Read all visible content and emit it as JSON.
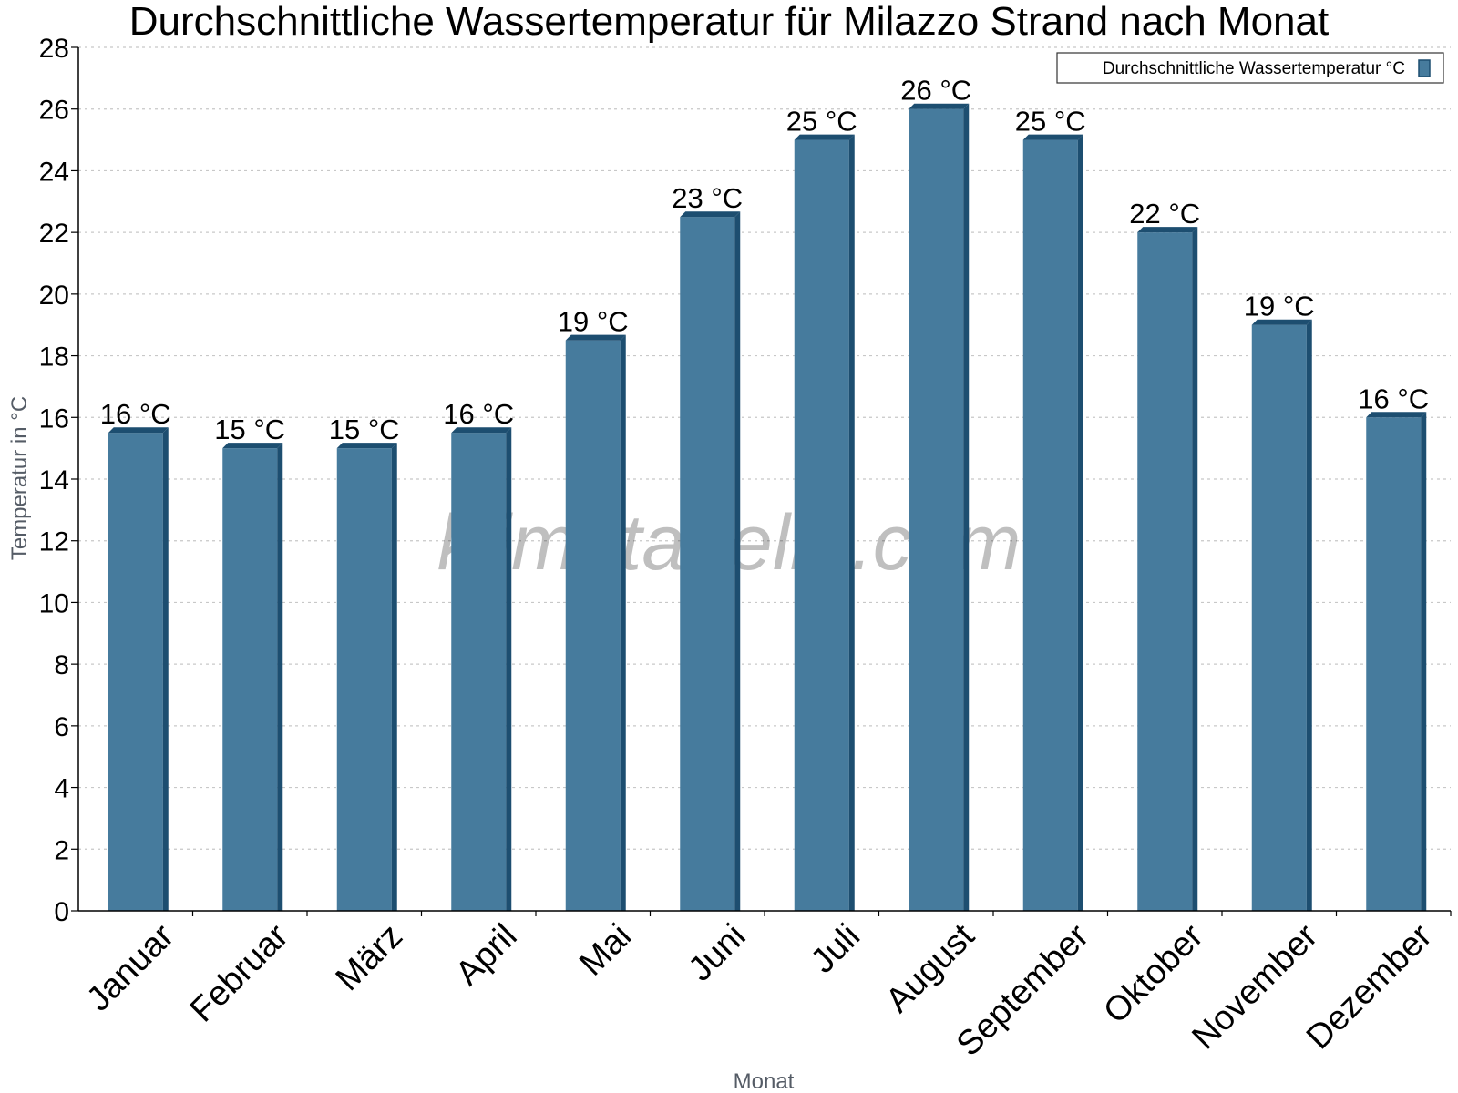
{
  "chart_data": {
    "type": "bar",
    "title": "Durchschnittliche Wassertemperatur für Milazzo Strand nach Monat",
    "xlabel": "Monat",
    "ylabel": "Temperatur in °C",
    "categories": [
      "Januar",
      "Februar",
      "März",
      "April",
      "Mai",
      "Juni",
      "Juli",
      "August",
      "September",
      "Oktober",
      "November",
      "Dezember"
    ],
    "series": [
      {
        "name": "Durchschnittliche Wassertemperatur °C",
        "values": [
          15.5,
          15.0,
          15.0,
          15.5,
          18.5,
          22.5,
          25.0,
          26.0,
          25.0,
          22.0,
          19.0,
          16.0
        ],
        "labels": [
          "16 °C",
          "15 °C",
          "15 °C",
          "16 °C",
          "19 °C",
          "23 °C",
          "25 °C",
          "26 °C",
          "25 °C",
          "22 °C",
          "19 °C",
          "16 °C"
        ],
        "color": "#467b9d"
      }
    ],
    "ylim": [
      0,
      28
    ],
    "yticks": [
      0,
      2,
      4,
      6,
      8,
      10,
      12,
      14,
      16,
      18,
      20,
      22,
      24,
      26,
      28
    ],
    "grid": true,
    "legend_position": "top-right",
    "watermark": "klimatabelle.com",
    "colors": {
      "bar": "#467b9d",
      "bar_dark": "#1d4e70",
      "grid": "#c8c8c8",
      "axis": "#000000"
    }
  }
}
